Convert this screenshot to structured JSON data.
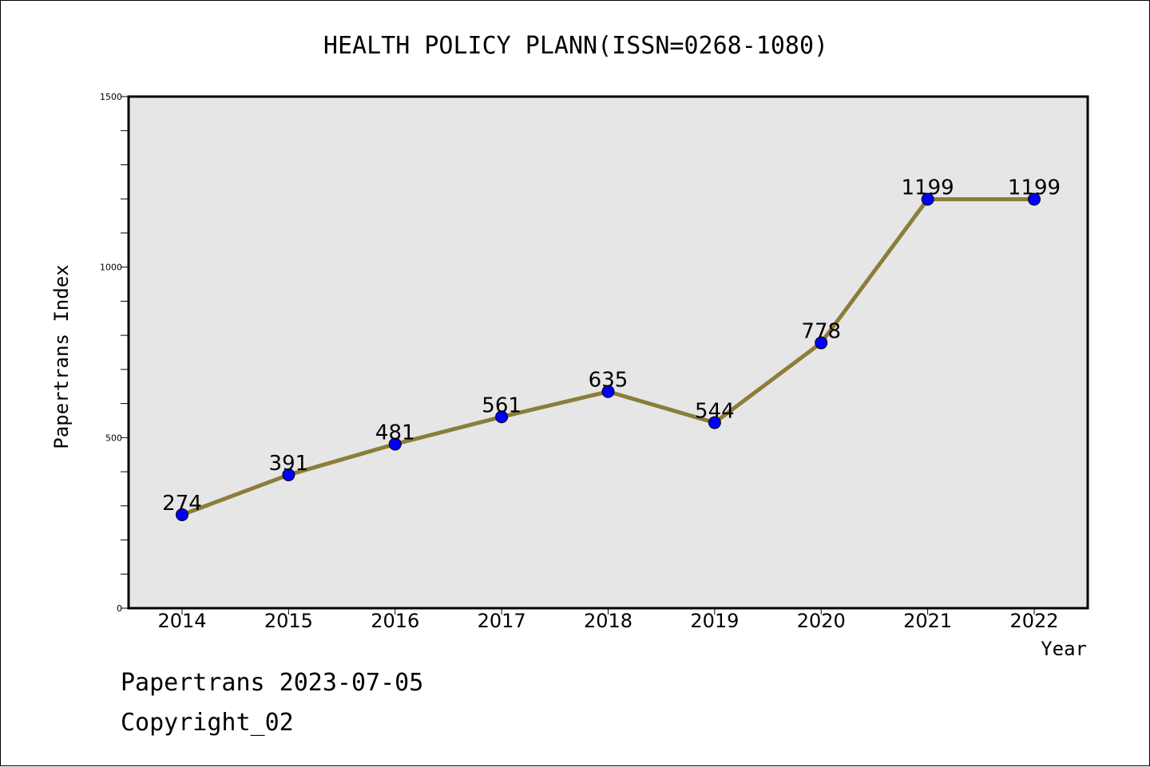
{
  "footer": {
    "date_line": "Papertrans 2023-07-05",
    "copyright_line": "Copyright_02"
  },
  "colors": {
    "plot_background": "#e6e6e6",
    "line": "#8b7d3a",
    "marker": "#0000ff"
  },
  "chart_data": {
    "type": "line",
    "title": "HEALTH POLICY PLANN(ISSN=0268-1080)",
    "xlabel": "Year",
    "ylabel": "Papertrans Index",
    "categories": [
      "2014",
      "2015",
      "2016",
      "2017",
      "2018",
      "2019",
      "2020",
      "2021",
      "2022"
    ],
    "series": [
      {
        "values": [
          274,
          391,
          481,
          561,
          635,
          544,
          778,
          1199,
          1199
        ]
      }
    ],
    "ylim": [
      0,
      1500
    ],
    "yticks": [
      "0",
      "500",
      "1000",
      "1500"
    ],
    "grid": false,
    "legend": "none"
  }
}
